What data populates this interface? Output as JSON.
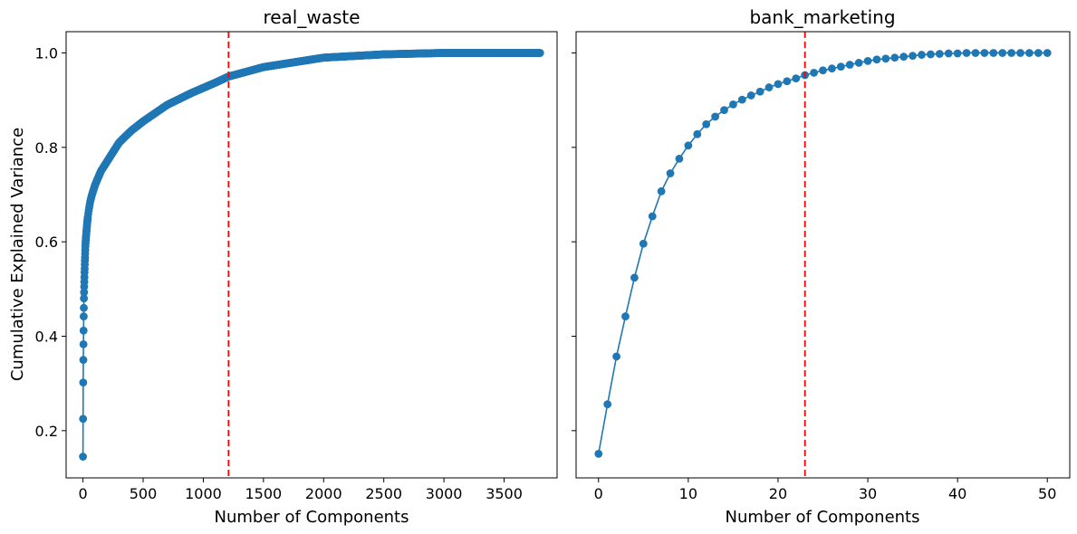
{
  "chart_data": [
    {
      "type": "line",
      "title": "real_waste",
      "xlabel": "Number of Components",
      "ylabel": "Cumulative Explained Variance",
      "xlim": [
        -140,
        3940
      ],
      "ylim": [
        0.1,
        1.045
      ],
      "xticks": [
        0,
        500,
        1000,
        1500,
        2000,
        2500,
        3000,
        3500
      ],
      "yticks": [
        0.2,
        0.4,
        0.6,
        0.8,
        1.0
      ],
      "threshold_x": 1210,
      "n_components": 3800,
      "sampled_points": {
        "x": [
          0,
          1,
          2,
          3,
          4,
          5,
          6,
          7,
          8,
          9,
          10,
          11,
          12,
          13,
          14,
          15,
          16,
          17,
          18,
          19,
          20,
          22,
          25,
          30,
          35,
          40,
          50,
          60,
          75,
          100,
          150,
          200,
          300,
          400,
          500,
          700,
          900,
          1100,
          1210,
          1500,
          2000,
          2500,
          3000,
          3500,
          3800
        ],
        "y": [
          0.145,
          0.225,
          0.302,
          0.35,
          0.383,
          0.412,
          0.442,
          0.46,
          0.48,
          0.493,
          0.505,
          0.515,
          0.525,
          0.535,
          0.543,
          0.552,
          0.56,
          0.567,
          0.575,
          0.582,
          0.59,
          0.6,
          0.61,
          0.625,
          0.64,
          0.652,
          0.67,
          0.685,
          0.7,
          0.72,
          0.75,
          0.77,
          0.81,
          0.835,
          0.855,
          0.89,
          0.915,
          0.937,
          0.95,
          0.97,
          0.99,
          0.997,
          1.0,
          1.0,
          1.0
        ]
      }
    },
    {
      "type": "line",
      "title": "bank_marketing",
      "xlabel": "Number of Components",
      "ylabel": "",
      "xlim": [
        -2.5,
        52.5
      ],
      "ylim": [
        0.1,
        1.045
      ],
      "xticks": [
        0,
        10,
        20,
        30,
        40,
        50
      ],
      "yticks": [
        0.2,
        0.4,
        0.6,
        0.8,
        1.0
      ],
      "threshold_x": 23,
      "x": [
        0,
        1,
        2,
        3,
        4,
        5,
        6,
        7,
        8,
        9,
        10,
        11,
        12,
        13,
        14,
        15,
        16,
        17,
        18,
        19,
        20,
        21,
        22,
        23,
        24,
        25,
        26,
        27,
        28,
        29,
        30,
        31,
        32,
        33,
        34,
        35,
        36,
        37,
        38,
        39,
        40,
        41,
        42,
        43,
        44,
        45,
        46,
        47,
        48,
        49,
        50
      ],
      "y": [
        0.151,
        0.256,
        0.357,
        0.442,
        0.524,
        0.596,
        0.654,
        0.707,
        0.745,
        0.776,
        0.804,
        0.828,
        0.849,
        0.865,
        0.879,
        0.891,
        0.901,
        0.91,
        0.918,
        0.927,
        0.934,
        0.94,
        0.946,
        0.953,
        0.958,
        0.963,
        0.967,
        0.971,
        0.975,
        0.979,
        0.983,
        0.986,
        0.988,
        0.99,
        0.992,
        0.994,
        0.996,
        0.997,
        0.998,
        0.999,
        0.999,
        1.0,
        1.0,
        1.0,
        1.0,
        1.0,
        1.0,
        1.0,
        1.0,
        1.0,
        1.0
      ]
    }
  ],
  "colors": {
    "series": "#1f77b4",
    "threshold": "#ff0000",
    "axes": "#000000"
  }
}
